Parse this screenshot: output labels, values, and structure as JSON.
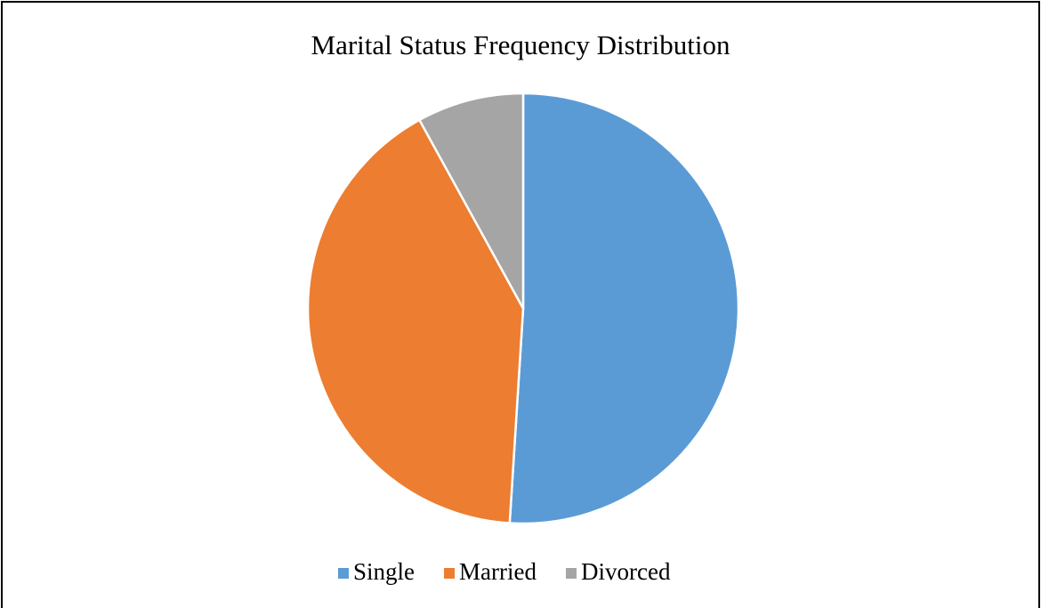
{
  "chart_data": {
    "type": "pie",
    "title": "Marital Status Frequency Distribution",
    "categories": [
      "Single",
      "Married",
      "Divorced"
    ],
    "values": [
      51,
      41,
      8
    ],
    "colors": [
      "#5b9bd5",
      "#ed7d31",
      "#a5a5a5"
    ],
    "legend": "bottom"
  }
}
